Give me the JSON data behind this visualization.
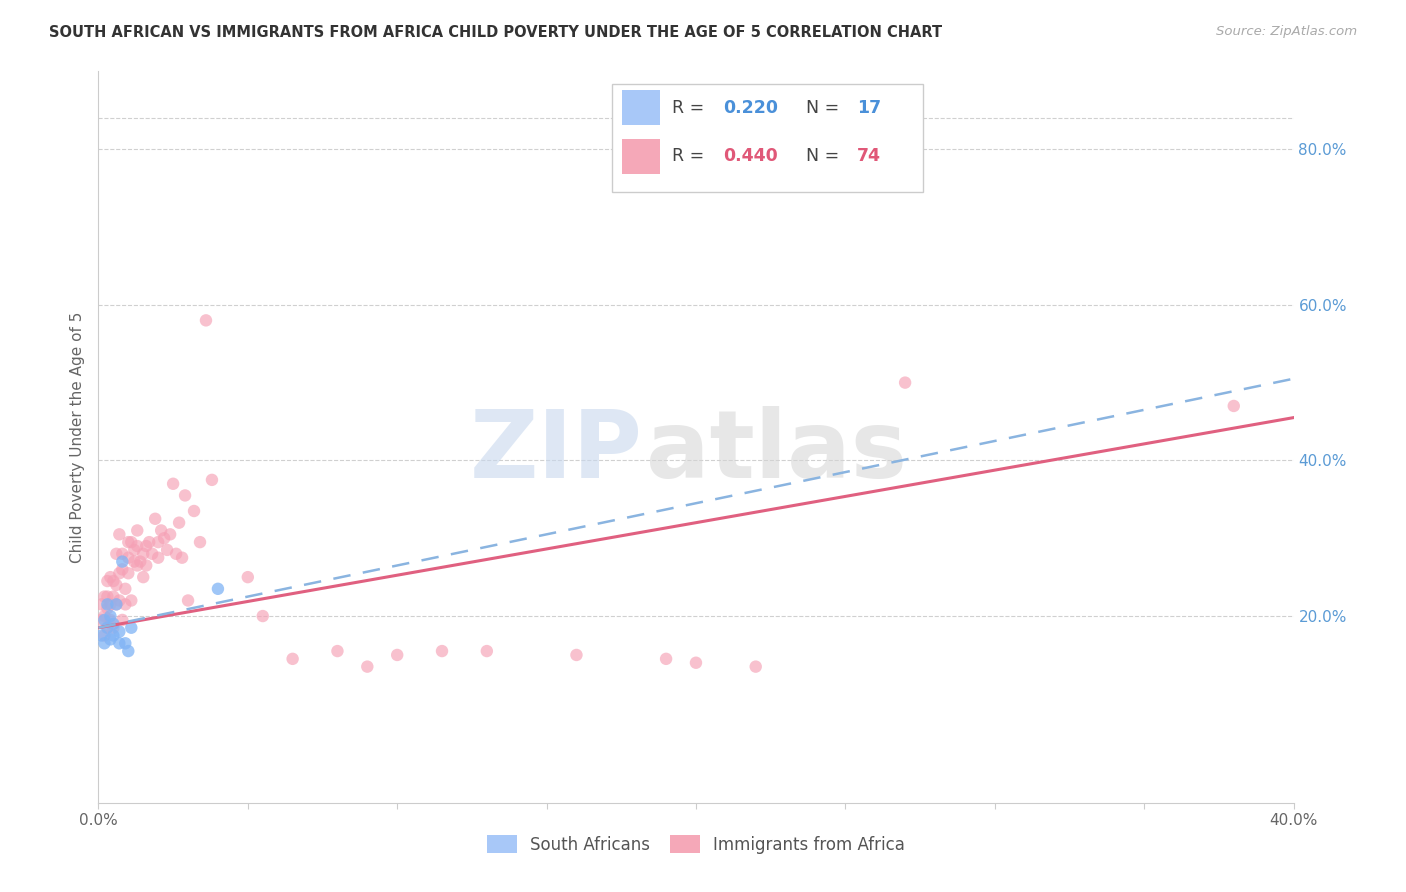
{
  "title": "SOUTH AFRICAN VS IMMIGRANTS FROM AFRICA CHILD POVERTY UNDER THE AGE OF 5 CORRELATION CHART",
  "source": "Source: ZipAtlas.com",
  "ylabel": "Child Poverty Under the Age of 5",
  "xlim": [
    0.0,
    0.4
  ],
  "ylim": [
    -0.04,
    0.9
  ],
  "ytick_vals_right": [
    0.2,
    0.4,
    0.6,
    0.8
  ],
  "ytick_labels_right": [
    "20.0%",
    "40.0%",
    "60.0%",
    "80.0%"
  ],
  "background_color": "#ffffff",
  "grid_color": "#d0d0d0",
  "watermark_zip": "ZIP",
  "watermark_atlas": "atlas",
  "legend_color1": "#a8c8f8",
  "legend_color2": "#f5a8b8",
  "blue_scatter_color": "#7fb3f5",
  "pink_scatter_color": "#f5a0b5",
  "blue_line_color": "#8ab4e0",
  "pink_line_color": "#e06080",
  "marker_size": 80,
  "sa_x": [
    0.001,
    0.002,
    0.002,
    0.003,
    0.003,
    0.004,
    0.004,
    0.005,
    0.005,
    0.006,
    0.007,
    0.007,
    0.008,
    0.009,
    0.01,
    0.011,
    0.04
  ],
  "sa_y": [
    0.175,
    0.165,
    0.195,
    0.185,
    0.215,
    0.17,
    0.2,
    0.175,
    0.19,
    0.215,
    0.18,
    0.165,
    0.27,
    0.165,
    0.155,
    0.185,
    0.235
  ],
  "imm_x": [
    0.001,
    0.001,
    0.002,
    0.002,
    0.002,
    0.003,
    0.003,
    0.003,
    0.003,
    0.004,
    0.004,
    0.004,
    0.005,
    0.005,
    0.005,
    0.006,
    0.006,
    0.006,
    0.007,
    0.007,
    0.007,
    0.008,
    0.008,
    0.008,
    0.009,
    0.009,
    0.01,
    0.01,
    0.01,
    0.011,
    0.011,
    0.012,
    0.012,
    0.013,
    0.013,
    0.013,
    0.014,
    0.015,
    0.015,
    0.016,
    0.016,
    0.017,
    0.018,
    0.019,
    0.02,
    0.02,
    0.021,
    0.022,
    0.023,
    0.024,
    0.025,
    0.026,
    0.027,
    0.028,
    0.029,
    0.03,
    0.032,
    0.034,
    0.036,
    0.038,
    0.05,
    0.055,
    0.065,
    0.08,
    0.09,
    0.1,
    0.115,
    0.13,
    0.16,
    0.19,
    0.2,
    0.22,
    0.27,
    0.38
  ],
  "imm_y": [
    0.195,
    0.215,
    0.175,
    0.2,
    0.225,
    0.185,
    0.21,
    0.225,
    0.245,
    0.195,
    0.215,
    0.25,
    0.185,
    0.225,
    0.245,
    0.215,
    0.24,
    0.28,
    0.22,
    0.255,
    0.305,
    0.195,
    0.26,
    0.28,
    0.215,
    0.235,
    0.255,
    0.275,
    0.295,
    0.22,
    0.295,
    0.27,
    0.285,
    0.265,
    0.29,
    0.31,
    0.27,
    0.25,
    0.28,
    0.265,
    0.29,
    0.295,
    0.28,
    0.325,
    0.275,
    0.295,
    0.31,
    0.3,
    0.285,
    0.305,
    0.37,
    0.28,
    0.32,
    0.275,
    0.355,
    0.22,
    0.335,
    0.295,
    0.58,
    0.375,
    0.25,
    0.2,
    0.145,
    0.155,
    0.135,
    0.15,
    0.155,
    0.155,
    0.15,
    0.145,
    0.14,
    0.135,
    0.5,
    0.47
  ],
  "blue_line_x0": 0.0,
  "blue_line_y0": 0.185,
  "blue_line_x1": 0.4,
  "blue_line_y1": 0.505,
  "pink_line_x0": 0.0,
  "pink_line_y0": 0.185,
  "pink_line_x1": 0.4,
  "pink_line_y1": 0.455
}
